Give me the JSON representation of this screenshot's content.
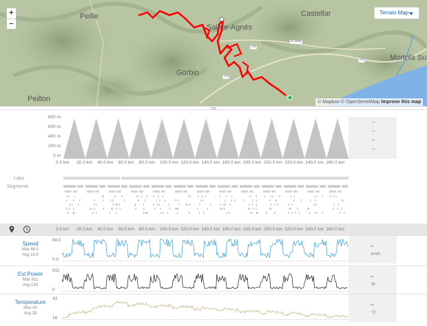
{
  "map": {
    "zoom_in_label": "+",
    "zoom_out_label": "−",
    "terrain_button_label": "Terrain Map",
    "labels": {
      "peille": "Peille",
      "castellar": "Castellar",
      "sainte_agnes": "Sainte-Agnès",
      "gorbio": "Gorbio",
      "peillon": "Peillon",
      "mortola": "Mortola Sup",
      "road_a8a": "A 8",
      "road_a8b": "A 8",
      "road_d2566": "D 2566",
      "road_a8c": "A 8"
    },
    "attribution": {
      "mapbox": "© Mapbox",
      "osm": "© OpenStreetMap",
      "improve": "Improve this map"
    },
    "colors": {
      "route": "#ff0000",
      "start_marker": "#2db34a",
      "sea": "#7fb3e6"
    }
  },
  "elevation": {
    "y_ticks": [
      "800 m",
      "600 m",
      "400 m",
      "200 m",
      "0 m"
    ],
    "x_ticks": [
      "0.0 km",
      "20.0 km",
      "40.0 km",
      "60.0 km",
      "80.0 km",
      "100.0 km",
      "120.0 km",
      "140.0 km",
      "160.0 km",
      "180.0 km",
      "200.0 km",
      "220.0 km",
      "240.0 km",
      "260.0 km"
    ],
    "side_values": [
      "--",
      "--",
      "--",
      "--"
    ]
  },
  "laps": {
    "laps_label": "Laps",
    "segments_label": "Segments"
  },
  "toolbar": {
    "x_ticks": [
      "0.0 km",
      "20.0 km",
      "40.0 km",
      "60.0 km",
      "80.0 km",
      "100.0 km",
      "120.0 km",
      "140.0 km",
      "160.0 km",
      "180.0 km",
      "200.0 km",
      "220.0 km",
      "240.0 km",
      "260.0 km"
    ],
    "pin_icon": "map-pin-icon",
    "clock_icon": "clock-icon"
  },
  "streams": [
    {
      "name": "Speed",
      "max": "Max 68.0",
      "avg": "Avg 18.9",
      "axis_top": "68.0",
      "axis_bottom": "0.0",
      "value": "--",
      "unit": "km/h",
      "color": "#4aa8dc"
    },
    {
      "name": "Est Power",
      "max": "Max 811",
      "avg": "Avg 139",
      "axis_top": "811",
      "axis_bottom": "0",
      "value": "--",
      "unit": "W",
      "color": "#333333"
    },
    {
      "name": "Temperature",
      "max": "Max 43",
      "avg": "Avg 28",
      "axis_top": "43",
      "axis_bottom": "16",
      "value": "--",
      "unit": "°C",
      "color": "#c9b88a"
    }
  ]
}
